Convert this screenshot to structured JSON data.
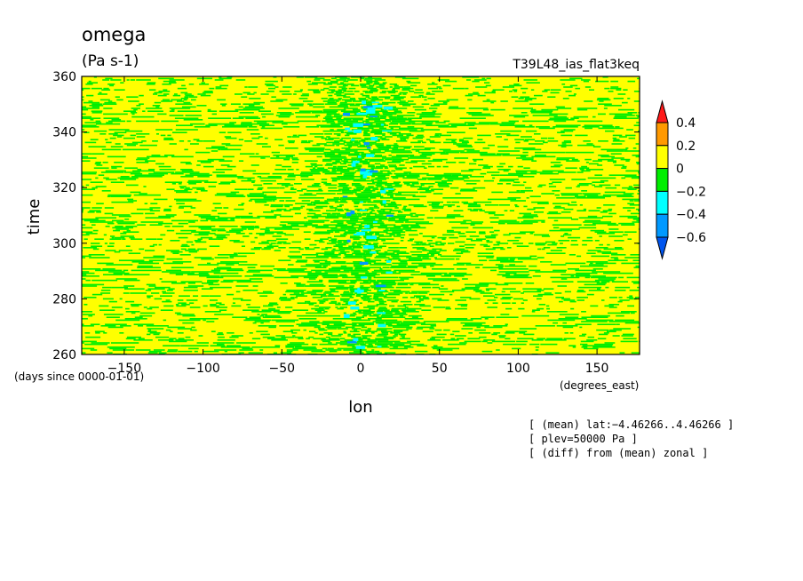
{
  "chart_data": {
    "type": "heatmap",
    "title": "omega",
    "units": "(Pa s-1)",
    "experiment": "T39L48_ias_flat3keq",
    "xlabel": "lon",
    "x_units": "(degrees_east)",
    "ylabel": "time",
    "y_units": "(days since 0000-01-01)",
    "xlim": [
      -177,
      177
    ],
    "ylim": [
      260,
      360
    ],
    "x_ticks": [
      -150,
      -100,
      -50,
      0,
      50,
      100,
      150
    ],
    "x_tick_labels": [
      "−150",
      "−100",
      "−50",
      "0",
      "50",
      "100",
      "150"
    ],
    "y_ticks": [
      260,
      280,
      300,
      320,
      340,
      360
    ],
    "y_tick_labels": [
      "260",
      "280",
      "300",
      "320",
      "340",
      "360"
    ],
    "colorbar": {
      "levels": [
        0.4,
        0.2,
        0,
        -0.2,
        -0.4,
        -0.6
      ],
      "level_labels": [
        "0.4",
        "0.2",
        "0",
        "−0.2",
        "−0.4",
        "−0.6"
      ],
      "colors": [
        "#ff1a1a",
        "#ff9900",
        "#ffff00",
        "#00ee00",
        "#00ffff",
        "#0099ff",
        "#0055ee"
      ]
    },
    "annotations": [
      "[ (mean) lat:−4.46266..4.46266 ]",
      "[ plev=50000 Pa ]",
      "[ (diff) from (mean) zonal ]"
    ],
    "grid": false
  }
}
